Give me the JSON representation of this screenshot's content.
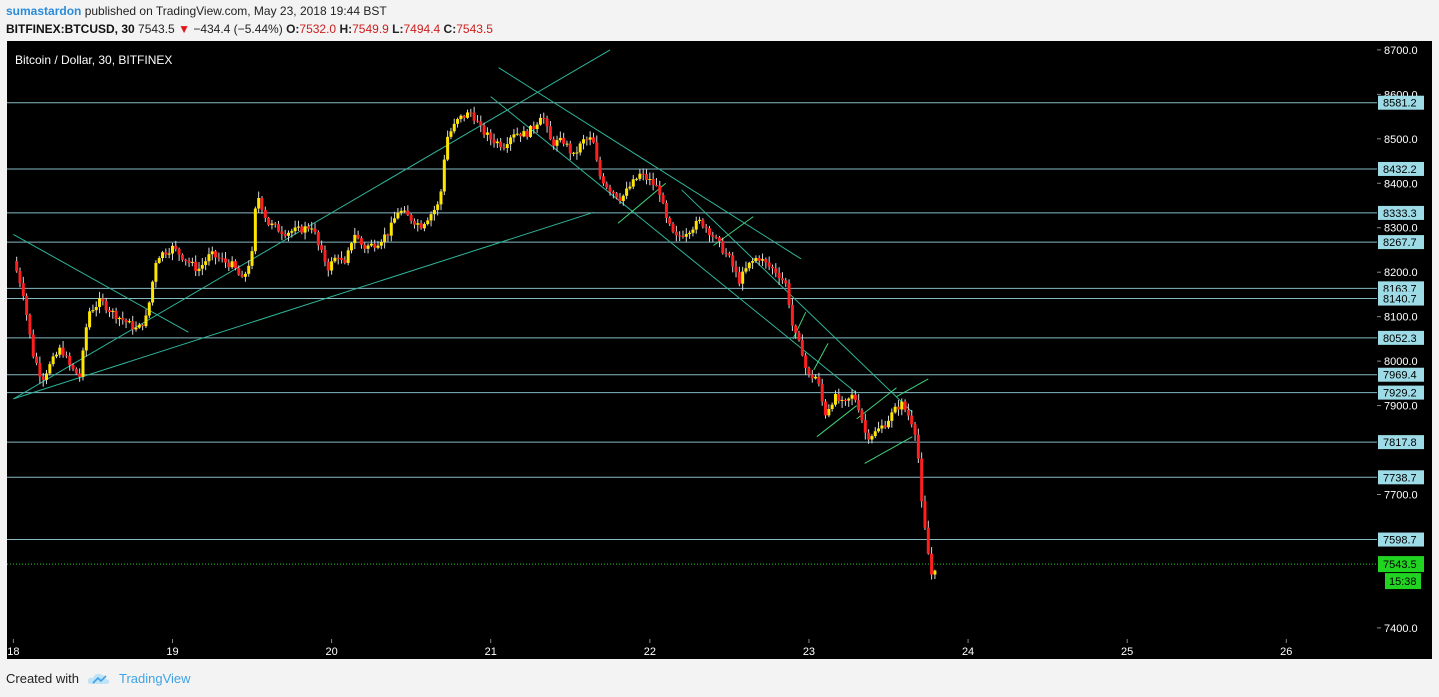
{
  "header": {
    "author": "sumastardon",
    "published": "published on TradingView.com, May 23, 2018 19:44 BST",
    "symbol": "BITFINEX:BTCUSD, 30",
    "last": "7543.5",
    "arrow": "▼",
    "change": "−434.4 (−5.44%)",
    "o_label": "O:",
    "o": "7532.0",
    "h_label": "H:",
    "h": "7549.9",
    "l_label": "L:",
    "l": "7494.4",
    "c_label": "C:",
    "c": "7543.5"
  },
  "footer": {
    "created_with": "Created with",
    "brand": "TradingView",
    "logo_icon": "tradingview-cloud-icon"
  },
  "colors": {
    "background": "#000000",
    "up": "#ffe600",
    "down": "#ff1f1f",
    "wick": "#d8d8d8",
    "level_line": "#9ddbe6",
    "label_bg": "#9ddbe6",
    "trend_line": "#2fb59a",
    "bull_line": "#3fd27a",
    "current_price": "#22d422",
    "axis_text": "#ffffff"
  },
  "chart_data": {
    "type": "candlestick",
    "title": "Bitcoin / Dollar, 30, BITFINEX",
    "x_tick_labels": [
      "18",
      "19",
      "20",
      "21",
      "22",
      "23",
      "24",
      "25",
      "26"
    ],
    "y_tick_labels": [
      "7400.0",
      "7700.0",
      "7900.0",
      "8000.0",
      "8100.0",
      "8200.0",
      "8300.0",
      "8400.0",
      "8500.0",
      "8600.0",
      "8700.0"
    ],
    "xlim": [
      17.96,
      26.57
    ],
    "ylim": [
      7375,
      8720
    ],
    "horizontal_levels": [
      8581.2,
      8432.2,
      8333.3,
      8267.7,
      8163.7,
      8140.7,
      8052.3,
      7969.4,
      7929.2,
      7817.8,
      7738.7,
      7598.7
    ],
    "current_price": 7543.5,
    "countdown": "15:38",
    "trend_lines": [
      {
        "from": [
          18.0,
          7915
        ],
        "to": [
          21.75,
          8700
        ]
      },
      {
        "from": [
          18.0,
          7915
        ],
        "to": [
          21.65,
          8335
        ]
      },
      {
        "from": [
          18.0,
          8285
        ],
        "to": [
          19.1,
          8065
        ]
      },
      {
        "from": [
          21.05,
          8660
        ],
        "to": [
          22.95,
          8230
        ]
      },
      {
        "from": [
          21.0,
          8595
        ],
        "to": [
          23.3,
          7928
        ]
      },
      {
        "from": [
          22.2,
          8385
        ],
        "to": [
          23.65,
          7885
        ]
      }
    ],
    "minor_lines": [
      {
        "from": [
          21.8,
          8310
        ],
        "to": [
          22.1,
          8400
        ]
      },
      {
        "from": [
          22.4,
          8260
        ],
        "to": [
          22.65,
          8325
        ]
      },
      {
        "from": [
          22.9,
          8050
        ],
        "to": [
          22.98,
          8110
        ]
      },
      {
        "from": [
          23.03,
          7980
        ],
        "to": [
          23.12,
          8040
        ]
      },
      {
        "from": [
          23.05,
          7830
        ],
        "to": [
          23.3,
          7900
        ]
      },
      {
        "from": [
          23.3,
          7870
        ],
        "to": [
          23.55,
          7940
        ]
      },
      {
        "from": [
          23.35,
          7770
        ],
        "to": [
          23.65,
          7830
        ]
      },
      {
        "from": [
          23.55,
          7920
        ],
        "to": [
          23.75,
          7960
        ]
      }
    ],
    "path_points": [
      [
        18.0,
        8225
      ],
      [
        18.06,
        8160
      ],
      [
        18.12,
        8020
      ],
      [
        18.18,
        7960
      ],
      [
        18.22,
        7985
      ],
      [
        18.3,
        8030
      ],
      [
        18.36,
        7985
      ],
      [
        18.42,
        7965
      ],
      [
        18.47,
        8110
      ],
      [
        18.55,
        8135
      ],
      [
        18.62,
        8110
      ],
      [
        18.7,
        8090
      ],
      [
        18.78,
        8070
      ],
      [
        18.84,
        8100
      ],
      [
        18.9,
        8235
      ],
      [
        19.0,
        8255
      ],
      [
        19.08,
        8230
      ],
      [
        19.16,
        8205
      ],
      [
        19.24,
        8240
      ],
      [
        19.32,
        8225
      ],
      [
        19.38,
        8215
      ],
      [
        19.44,
        8180
      ],
      [
        19.5,
        8240
      ],
      [
        19.53,
        8380
      ],
      [
        19.6,
        8310
      ],
      [
        19.7,
        8290
      ],
      [
        19.8,
        8295
      ],
      [
        19.88,
        8305
      ],
      [
        19.92,
        8255
      ],
      [
        19.98,
        8210
      ],
      [
        20.04,
        8240
      ],
      [
        20.08,
        8210
      ],
      [
        20.14,
        8290
      ],
      [
        20.2,
        8255
      ],
      [
        20.28,
        8265
      ],
      [
        20.36,
        8290
      ],
      [
        20.42,
        8340
      ],
      [
        20.5,
        8320
      ],
      [
        20.56,
        8305
      ],
      [
        20.62,
        8330
      ],
      [
        20.68,
        8355
      ],
      [
        20.72,
        8500
      ],
      [
        20.8,
        8545
      ],
      [
        20.88,
        8560
      ],
      [
        20.94,
        8520
      ],
      [
        21.0,
        8500
      ],
      [
        21.08,
        8485
      ],
      [
        21.14,
        8515
      ],
      [
        21.22,
        8510
      ],
      [
        21.28,
        8530
      ],
      [
        21.32,
        8560
      ],
      [
        21.38,
        8490
      ],
      [
        21.46,
        8495
      ],
      [
        21.52,
        8460
      ],
      [
        21.58,
        8495
      ],
      [
        21.64,
        8500
      ],
      [
        21.68,
        8420
      ],
      [
        21.74,
        8390
      ],
      [
        21.82,
        8365
      ],
      [
        21.88,
        8395
      ],
      [
        21.94,
        8420
      ],
      [
        22.0,
        8405
      ],
      [
        22.06,
        8385
      ],
      [
        22.1,
        8320
      ],
      [
        22.16,
        8275
      ],
      [
        22.24,
        8295
      ],
      [
        22.32,
        8315
      ],
      [
        22.38,
        8290
      ],
      [
        22.44,
        8260
      ],
      [
        22.5,
        8230
      ],
      [
        22.56,
        8180
      ],
      [
        22.62,
        8215
      ],
      [
        22.68,
        8235
      ],
      [
        22.74,
        8215
      ],
      [
        22.8,
        8200
      ],
      [
        22.86,
        8170
      ],
      [
        22.9,
        8070
      ],
      [
        22.96,
        8020
      ],
      [
        22.99,
        7965
      ],
      [
        23.05,
        7965
      ],
      [
        23.1,
        7880
      ],
      [
        23.16,
        7920
      ],
      [
        23.22,
        7900
      ],
      [
        23.28,
        7925
      ],
      [
        23.32,
        7890
      ],
      [
        23.36,
        7830
      ],
      [
        23.42,
        7840
      ],
      [
        23.48,
        7860
      ],
      [
        23.54,
        7890
      ],
      [
        23.58,
        7905
      ],
      [
        23.64,
        7870
      ],
      [
        23.68,
        7830
      ],
      [
        23.7,
        7700
      ],
      [
        23.74,
        7590
      ],
      [
        23.77,
        7520
      ],
      [
        23.8,
        7543
      ]
    ]
  }
}
